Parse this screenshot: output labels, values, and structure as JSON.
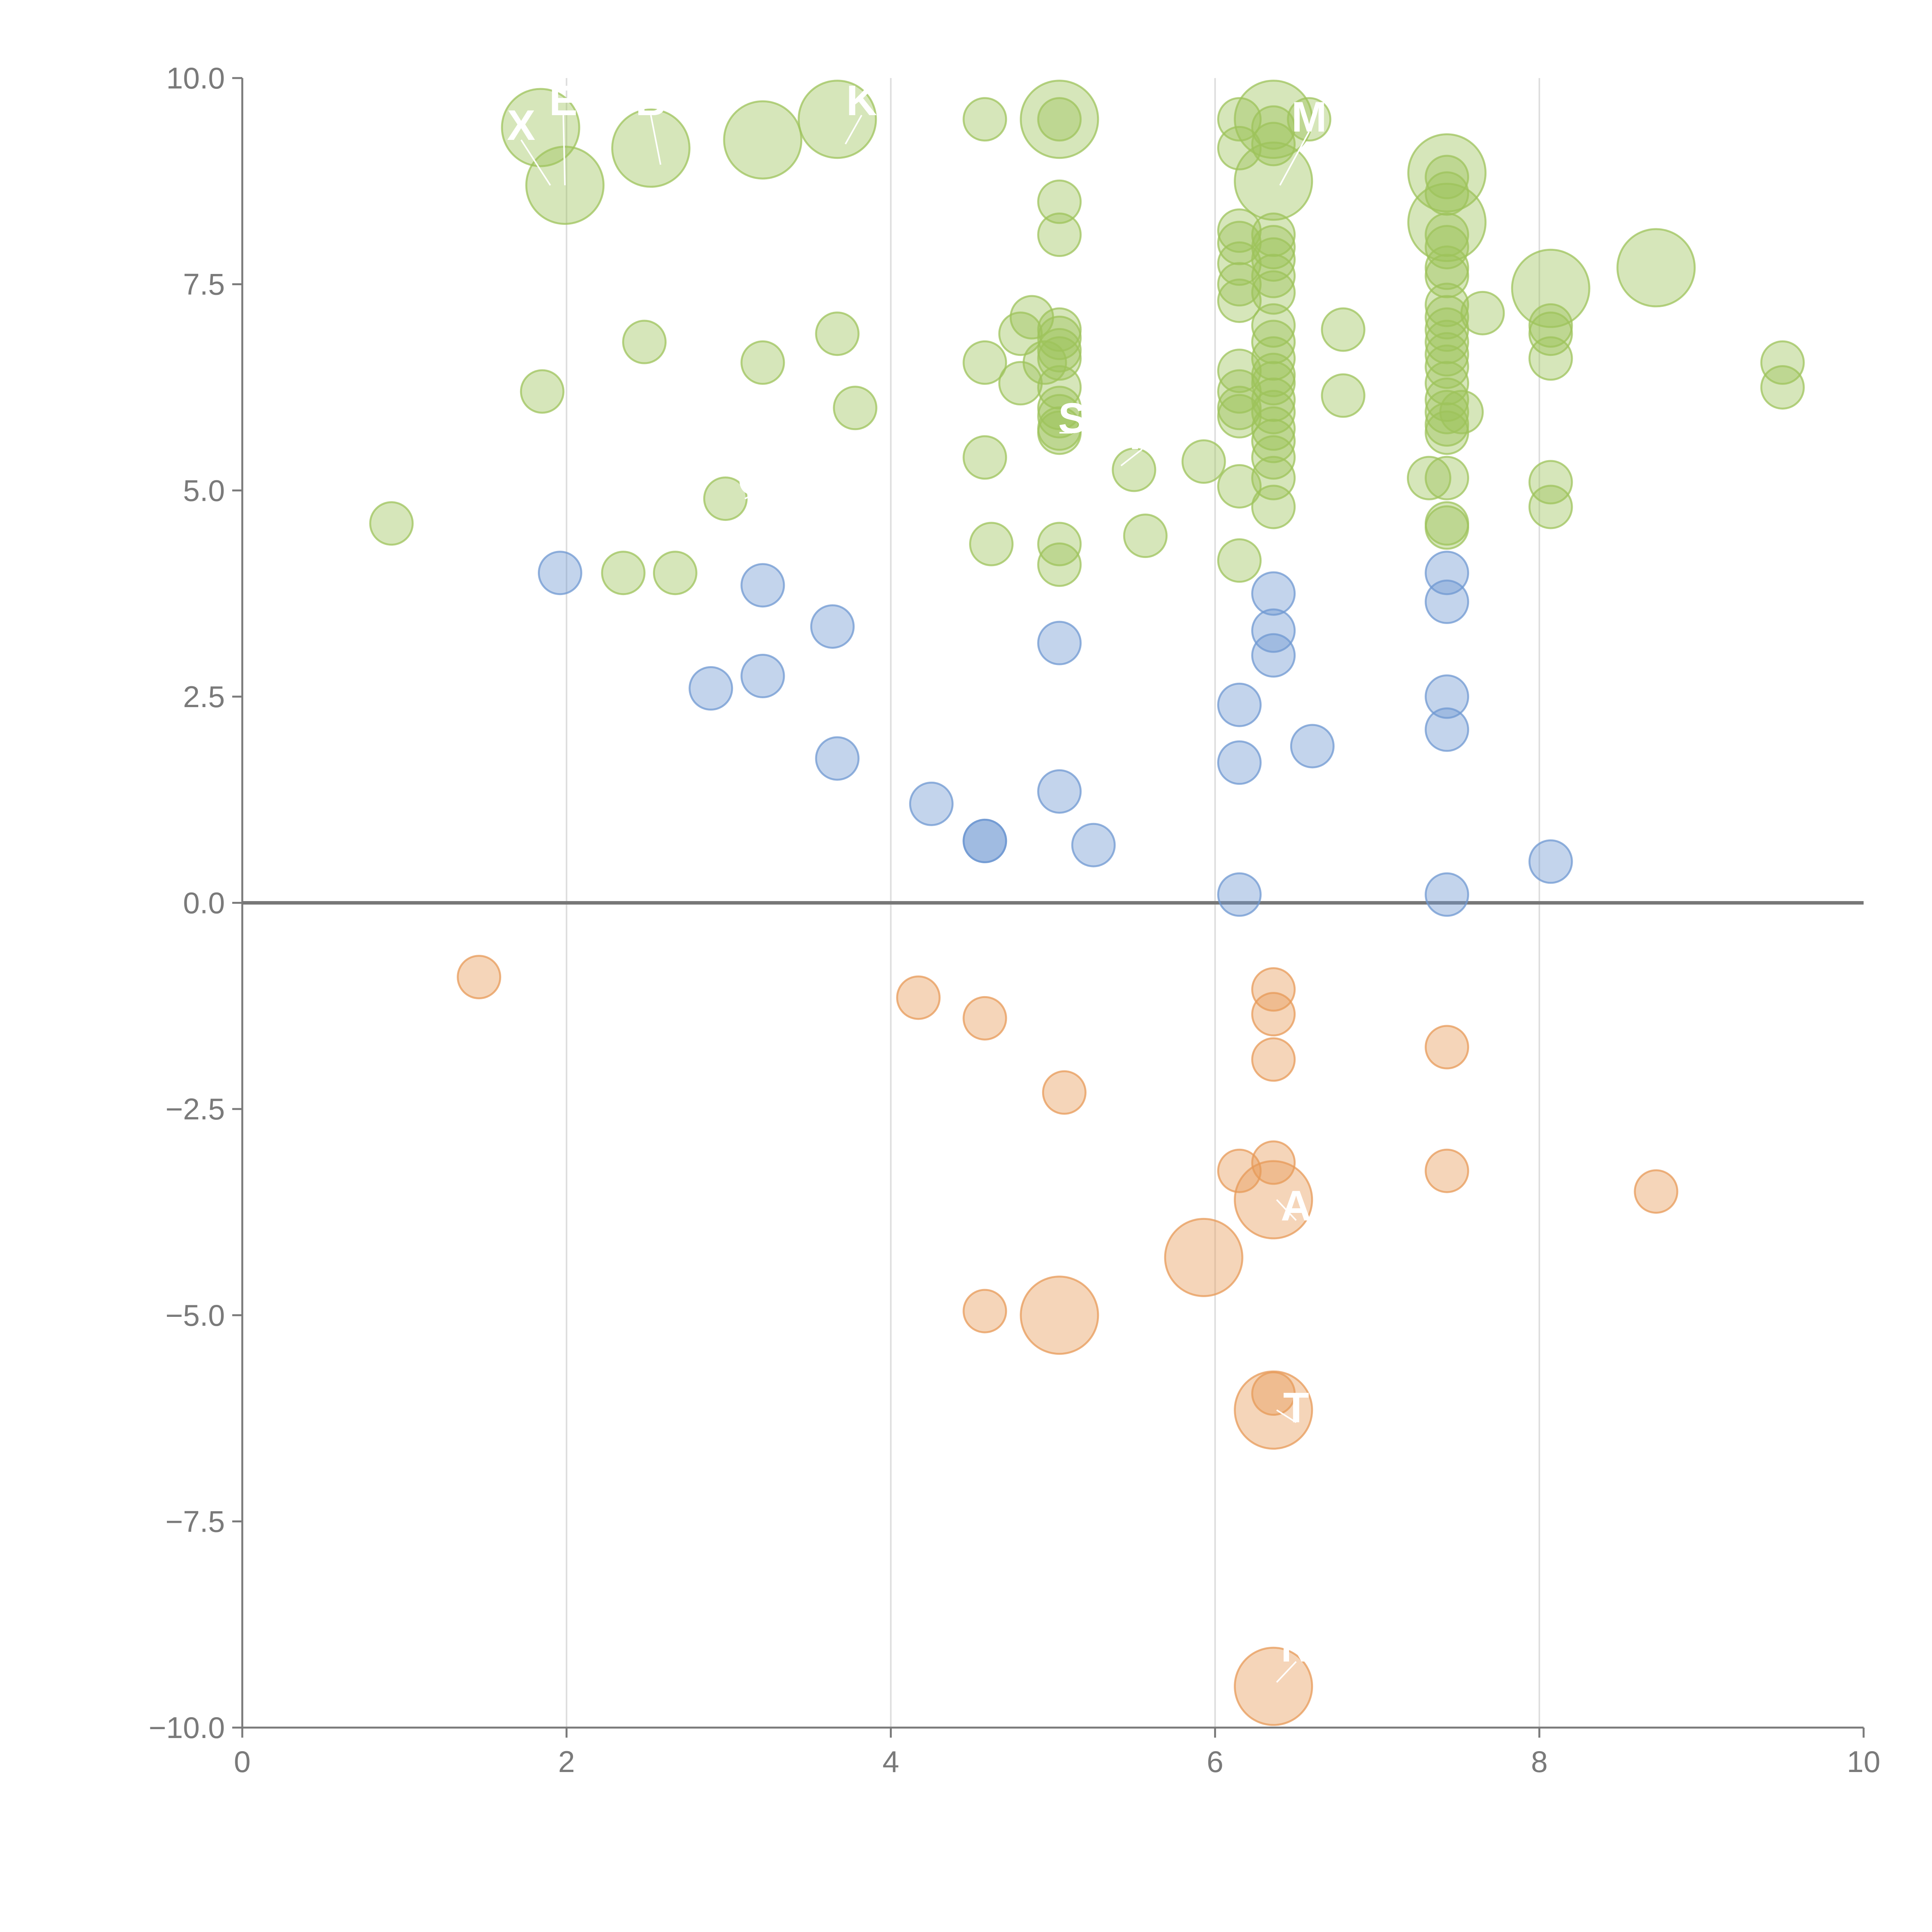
{
  "chart_data": {
    "type": "scatter",
    "title": "",
    "xlabel": "",
    "ylabel": "",
    "xlim": [
      0,
      10
    ],
    "ylim": [
      -10,
      10
    ],
    "x_ticks": [
      "0",
      "2",
      "4",
      "6",
      "8",
      "10"
    ],
    "y_ticks": [
      "10.0",
      "7.5",
      "5.0",
      "2.5",
      "0.0",
      "−2.5",
      "−5.0",
      "−7.5",
      "−10.0"
    ],
    "grid": "vertical",
    "zero_line": true,
    "legend": "none",
    "colors": {
      "high": "#9dc35b",
      "mid": "#6f98d2",
      "negative": "#e79a58",
      "axis": "#7a7a7a",
      "grid": "#dddddd",
      "zero_line": "#777777"
    },
    "labels": [
      "X",
      "E",
      "B",
      "K",
      "M",
      "C",
      "S",
      "F",
      "A",
      "T",
      "N"
    ],
    "series": [
      {
        "color_key": "high",
        "points": [
          {
            "x": 1.84,
            "y": 9.4,
            "r": 3
          },
          {
            "x": 1.99,
            "y": 8.7,
            "r": 3
          },
          {
            "x": 2.52,
            "y": 9.15,
            "r": 3
          },
          {
            "x": 3.21,
            "y": 9.25,
            "r": 3
          },
          {
            "x": 3.67,
            "y": 9.5,
            "r": 3
          },
          {
            "x": 4.58,
            "y": 9.5,
            "r": 1
          },
          {
            "x": 5.04,
            "y": 9.5,
            "r": 3
          },
          {
            "x": 5.04,
            "y": 9.5,
            "r": 1
          },
          {
            "x": 6.15,
            "y": 9.5,
            "r": 1
          },
          {
            "x": 6.15,
            "y": 9.15,
            "r": 1
          },
          {
            "x": 6.36,
            "y": 9.5,
            "r": 3
          },
          {
            "x": 6.36,
            "y": 9.4,
            "r": 1
          },
          {
            "x": 6.36,
            "y": 9.2,
            "r": 1
          },
          {
            "x": 6.58,
            "y": 9.5,
            "r": 1
          },
          {
            "x": 6.36,
            "y": 8.75,
            "r": 3
          },
          {
            "x": 7.43,
            "y": 8.85,
            "r": 3
          },
          {
            "x": 7.43,
            "y": 8.8,
            "r": 1
          },
          {
            "x": 7.43,
            "y": 8.6,
            "r": 1
          },
          {
            "x": 7.43,
            "y": 8.25,
            "r": 3
          },
          {
            "x": 7.43,
            "y": 8.1,
            "r": 1
          },
          {
            "x": 7.43,
            "y": 7.95,
            "r": 1
          },
          {
            "x": 5.04,
            "y": 8.5,
            "r": 1
          },
          {
            "x": 5.04,
            "y": 8.1,
            "r": 1
          },
          {
            "x": 6.15,
            "y": 8.15,
            "r": 1
          },
          {
            "x": 6.15,
            "y": 8.0,
            "r": 1
          },
          {
            "x": 6.15,
            "y": 7.75,
            "r": 1
          },
          {
            "x": 6.15,
            "y": 7.5,
            "r": 1
          },
          {
            "x": 6.15,
            "y": 7.3,
            "r": 1
          },
          {
            "x": 6.36,
            "y": 8.1,
            "r": 1
          },
          {
            "x": 6.36,
            "y": 7.95,
            "r": 1
          },
          {
            "x": 6.36,
            "y": 7.8,
            "r": 1
          },
          {
            "x": 6.36,
            "y": 7.6,
            "r": 1
          },
          {
            "x": 6.36,
            "y": 7.4,
            "r": 1
          },
          {
            "x": 6.36,
            "y": 7.0,
            "r": 1
          },
          {
            "x": 6.36,
            "y": 6.8,
            "r": 1
          },
          {
            "x": 6.36,
            "y": 6.6,
            "r": 1
          },
          {
            "x": 6.36,
            "y": 6.4,
            "r": 1
          },
          {
            "x": 6.36,
            "y": 6.3,
            "r": 1
          },
          {
            "x": 6.36,
            "y": 6.1,
            "r": 1
          },
          {
            "x": 6.36,
            "y": 5.95,
            "r": 1
          },
          {
            "x": 6.36,
            "y": 5.75,
            "r": 1
          },
          {
            "x": 6.36,
            "y": 5.6,
            "r": 1
          },
          {
            "x": 6.36,
            "y": 5.4,
            "r": 1
          },
          {
            "x": 6.36,
            "y": 5.15,
            "r": 1
          },
          {
            "x": 6.36,
            "y": 4.8,
            "r": 1
          },
          {
            "x": 7.43,
            "y": 7.7,
            "r": 1
          },
          {
            "x": 7.43,
            "y": 7.6,
            "r": 1
          },
          {
            "x": 7.43,
            "y": 7.25,
            "r": 1
          },
          {
            "x": 7.43,
            "y": 7.1,
            "r": 1
          },
          {
            "x": 7.43,
            "y": 6.95,
            "r": 1
          },
          {
            "x": 7.43,
            "y": 6.8,
            "r": 1
          },
          {
            "x": 7.43,
            "y": 6.65,
            "r": 1
          },
          {
            "x": 7.43,
            "y": 6.5,
            "r": 1
          },
          {
            "x": 7.43,
            "y": 6.3,
            "r": 1
          },
          {
            "x": 7.43,
            "y": 6.1,
            "r": 1
          },
          {
            "x": 7.43,
            "y": 5.95,
            "r": 1
          },
          {
            "x": 7.43,
            "y": 5.8,
            "r": 1
          },
          {
            "x": 7.43,
            "y": 5.7,
            "r": 1
          },
          {
            "x": 7.52,
            "y": 5.95,
            "r": 1
          },
          {
            "x": 7.65,
            "y": 7.15,
            "r": 1
          },
          {
            "x": 7.43,
            "y": 5.15,
            "r": 1
          },
          {
            "x": 7.32,
            "y": 5.15,
            "r": 1
          },
          {
            "x": 7.43,
            "y": 4.6,
            "r": 1
          },
          {
            "x": 7.43,
            "y": 4.55,
            "r": 1
          },
          {
            "x": 8.07,
            "y": 7.45,
            "r": 3
          },
          {
            "x": 8.07,
            "y": 7.0,
            "r": 1
          },
          {
            "x": 8.07,
            "y": 6.9,
            "r": 1
          },
          {
            "x": 8.07,
            "y": 6.6,
            "r": 1
          },
          {
            "x": 8.07,
            "y": 5.1,
            "r": 1
          },
          {
            "x": 8.07,
            "y": 4.8,
            "r": 1
          },
          {
            "x": 8.72,
            "y": 7.7,
            "r": 3
          },
          {
            "x": 9.5,
            "y": 6.55,
            "r": 1
          },
          {
            "x": 9.5,
            "y": 6.25,
            "r": 1
          },
          {
            "x": 6.79,
            "y": 6.95,
            "r": 1
          },
          {
            "x": 6.79,
            "y": 6.15,
            "r": 1
          },
          {
            "x": 6.15,
            "y": 6.45,
            "r": 1
          },
          {
            "x": 6.15,
            "y": 6.2,
            "r": 1
          },
          {
            "x": 6.15,
            "y": 6.0,
            "r": 1
          },
          {
            "x": 6.15,
            "y": 5.9,
            "r": 1
          },
          {
            "x": 6.15,
            "y": 5.05,
            "r": 1
          },
          {
            "x": 6.15,
            "y": 4.15,
            "r": 1
          },
          {
            "x": 5.04,
            "y": 6.95,
            "r": 1
          },
          {
            "x": 5.04,
            "y": 6.85,
            "r": 1
          },
          {
            "x": 5.04,
            "y": 6.7,
            "r": 1
          },
          {
            "x": 5.04,
            "y": 6.6,
            "r": 1
          },
          {
            "x": 5.04,
            "y": 6.25,
            "r": 1
          },
          {
            "x": 5.04,
            "y": 6.0,
            "r": 1
          },
          {
            "x": 5.04,
            "y": 5.9,
            "r": 1
          },
          {
            "x": 5.04,
            "y": 5.75,
            "r": 1
          },
          {
            "x": 5.04,
            "y": 5.7,
            "r": 1
          },
          {
            "x": 4.87,
            "y": 7.1,
            "r": 1
          },
          {
            "x": 4.8,
            "y": 6.9,
            "r": 1
          },
          {
            "x": 4.95,
            "y": 6.55,
            "r": 1
          },
          {
            "x": 4.8,
            "y": 6.3,
            "r": 1
          },
          {
            "x": 4.58,
            "y": 6.55,
            "r": 1
          },
          {
            "x": 4.58,
            "y": 5.4,
            "r": 1
          },
          {
            "x": 4.62,
            "y": 4.35,
            "r": 1
          },
          {
            "x": 5.04,
            "y": 4.35,
            "r": 1
          },
          {
            "x": 5.04,
            "y": 4.1,
            "r": 1
          },
          {
            "x": 5.5,
            "y": 5.25,
            "r": 1
          },
          {
            "x": 5.57,
            "y": 4.45,
            "r": 1
          },
          {
            "x": 5.93,
            "y": 5.35,
            "r": 1
          },
          {
            "x": 3.67,
            "y": 6.9,
            "r": 1
          },
          {
            "x": 3.78,
            "y": 6.0,
            "r": 1
          },
          {
            "x": 3.21,
            "y": 6.55,
            "r": 1
          },
          {
            "x": 2.98,
            "y": 4.9,
            "r": 1
          },
          {
            "x": 2.48,
            "y": 6.8,
            "r": 1
          },
          {
            "x": 1.85,
            "y": 6.2,
            "r": 1
          },
          {
            "x": 0.92,
            "y": 4.6,
            "r": 1
          },
          {
            "x": 2.35,
            "y": 4.0,
            "r": 1
          },
          {
            "x": 2.67,
            "y": 4.0,
            "r": 1
          }
        ]
      },
      {
        "color_key": "mid",
        "points": [
          {
            "x": 1.96,
            "y": 4.0,
            "r": 1
          },
          {
            "x": 3.21,
            "y": 3.85,
            "r": 1
          },
          {
            "x": 3.64,
            "y": 3.35,
            "r": 1
          },
          {
            "x": 2.89,
            "y": 2.6,
            "r": 1
          },
          {
            "x": 3.21,
            "y": 2.75,
            "r": 1
          },
          {
            "x": 3.67,
            "y": 1.75,
            "r": 1
          },
          {
            "x": 4.25,
            "y": 1.2,
            "r": 1
          },
          {
            "x": 4.58,
            "y": 0.75,
            "r": 1
          },
          {
            "x": 4.58,
            "y": 0.75,
            "r": 1
          },
          {
            "x": 5.04,
            "y": 3.15,
            "r": 1
          },
          {
            "x": 5.04,
            "y": 1.35,
            "r": 1
          },
          {
            "x": 5.25,
            "y": 0.7,
            "r": 1
          },
          {
            "x": 6.15,
            "y": 2.4,
            "r": 1
          },
          {
            "x": 6.15,
            "y": 1.7,
            "r": 1
          },
          {
            "x": 6.15,
            "y": 0.1,
            "r": 1
          },
          {
            "x": 6.36,
            "y": 3.75,
            "r": 1
          },
          {
            "x": 6.36,
            "y": 3.3,
            "r": 1
          },
          {
            "x": 6.36,
            "y": 3.0,
            "r": 1
          },
          {
            "x": 6.6,
            "y": 1.9,
            "r": 1
          },
          {
            "x": 7.43,
            "y": 4.0,
            "r": 1
          },
          {
            "x": 7.43,
            "y": 3.65,
            "r": 1
          },
          {
            "x": 7.43,
            "y": 2.5,
            "r": 1
          },
          {
            "x": 7.43,
            "y": 2.1,
            "r": 1
          },
          {
            "x": 7.43,
            "y": 0.1,
            "r": 1
          },
          {
            "x": 8.07,
            "y": 0.5,
            "r": 1
          }
        ]
      },
      {
        "color_key": "negative",
        "points": [
          {
            "x": 1.46,
            "y": -0.9,
            "r": 1
          },
          {
            "x": 4.17,
            "y": -1.15,
            "r": 1
          },
          {
            "x": 4.58,
            "y": -1.4,
            "r": 1
          },
          {
            "x": 5.07,
            "y": -2.3,
            "r": 1
          },
          {
            "x": 6.36,
            "y": -1.05,
            "r": 1
          },
          {
            "x": 6.36,
            "y": -1.35,
            "r": 1
          },
          {
            "x": 6.36,
            "y": -1.9,
            "r": 1
          },
          {
            "x": 7.43,
            "y": -1.75,
            "r": 1
          },
          {
            "x": 6.15,
            "y": -3.25,
            "r": 1
          },
          {
            "x": 6.36,
            "y": -3.15,
            "r": 1
          },
          {
            "x": 6.36,
            "y": -3.6,
            "r": 3
          },
          {
            "x": 7.43,
            "y": -3.25,
            "r": 1
          },
          {
            "x": 8.72,
            "y": -3.5,
            "r": 1
          },
          {
            "x": 5.93,
            "y": -4.3,
            "r": 3
          },
          {
            "x": 4.58,
            "y": -4.95,
            "r": 1
          },
          {
            "x": 5.04,
            "y": -5.0,
            "r": 3
          },
          {
            "x": 6.36,
            "y": -5.95,
            "r": 1
          },
          {
            "x": 6.36,
            "y": -6.15,
            "r": 3
          },
          {
            "x": 6.36,
            "y": -9.5,
            "r": 3
          }
        ]
      }
    ],
    "annotations": [
      {
        "label_index": 0,
        "x": 1.72,
        "y": 9.25,
        "lx": 1.9,
        "ly": 8.7
      },
      {
        "label_index": 1,
        "x": 1.98,
        "y": 9.55,
        "lx": 1.99,
        "ly": 8.7
      },
      {
        "label_index": 2,
        "x": 2.52,
        "y": 9.55,
        "lx": 2.58,
        "ly": 8.95
      },
      {
        "label_index": 3,
        "x": 3.82,
        "y": 9.55,
        "lx": 3.72,
        "ly": 9.2
      },
      {
        "label_index": 4,
        "x": 6.58,
        "y": 9.35,
        "lx": 6.4,
        "ly": 8.7
      },
      {
        "label_index": 5,
        "x": 3.15,
        "y": 4.95,
        "lx": 3.1,
        "ly": 4.9
      },
      {
        "label_index": 6,
        "x": 5.12,
        "y": 5.7,
        "lx": 5.04,
        "ly": 5.7
      },
      {
        "label_index": 7,
        "x": 5.55,
        "y": 5.5,
        "lx": 5.42,
        "ly": 5.3
      },
      {
        "label_index": 8,
        "x": 6.5,
        "y": -3.85,
        "lx": 6.38,
        "ly": -3.6
      },
      {
        "label_index": 9,
        "x": 6.5,
        "y": -6.3,
        "lx": 6.38,
        "ly": -6.15
      },
      {
        "label_index": 10,
        "x": 6.5,
        "y": -9.2,
        "lx": 6.38,
        "ly": -9.45
      }
    ]
  }
}
